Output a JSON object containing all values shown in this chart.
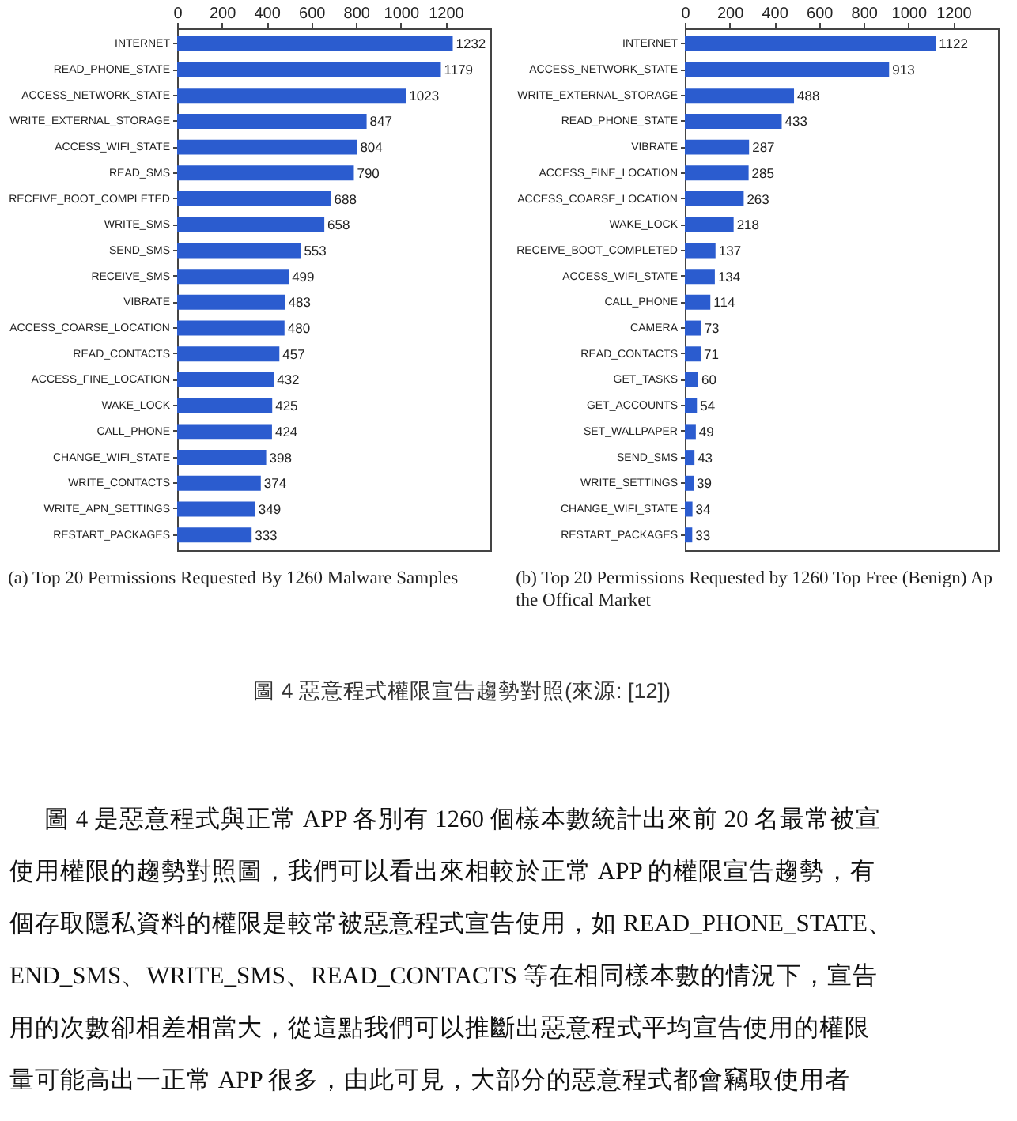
{
  "chart_data": [
    {
      "type": "bar",
      "orientation": "horizontal",
      "title": "(a) Top 20 Permissions Requested By 1260 Malware Samples",
      "categories": [
        "INTERNET",
        "READ_PHONE_STATE",
        "ACCESS_NETWORK_STATE",
        "WRITE_EXTERNAL_STORAGE",
        "ACCESS_WIFI_STATE",
        "READ_SMS",
        "RECEIVE_BOOT_COMPLETED",
        "WRITE_SMS",
        "SEND_SMS",
        "RECEIVE_SMS",
        "VIBRATE",
        "ACCESS_COARSE_LOCATION",
        "READ_CONTACTS",
        "ACCESS_FINE_LOCATION",
        "WAKE_LOCK",
        "CALL_PHONE",
        "CHANGE_WIFI_STATE",
        "WRITE_CONTACTS",
        "WRITE_APN_SETTINGS",
        "RESTART_PACKAGES"
      ],
      "values": [
        1232,
        1179,
        1023,
        847,
        804,
        790,
        688,
        658,
        553,
        499,
        483,
        480,
        457,
        432,
        425,
        424,
        398,
        374,
        349,
        333
      ],
      "color": "#2b5ccf",
      "xlim": [
        0,
        1400
      ],
      "xticks": [
        0,
        200,
        400,
        600,
        800,
        1000,
        1200
      ],
      "data_labels": true
    },
    {
      "type": "bar",
      "orientation": "horizontal",
      "title": "(b) Top 20 Permissions Requested by 1260 Top Free (Benign) Ap the Offical Market",
      "categories": [
        "INTERNET",
        "ACCESS_NETWORK_STATE",
        "WRITE_EXTERNAL_STORAGE",
        "READ_PHONE_STATE",
        "VIBRATE",
        "ACCESS_FINE_LOCATION",
        "ACCESS_COARSE_LOCATION",
        "WAKE_LOCK",
        "RECEIVE_BOOT_COMPLETED",
        "ACCESS_WIFI_STATE",
        "CALL_PHONE",
        "CAMERA",
        "READ_CONTACTS",
        "GET_TASKS",
        "GET_ACCOUNTS",
        "SET_WALLPAPER",
        "SEND_SMS",
        "WRITE_SETTINGS",
        "CHANGE_WIFI_STATE",
        "RESTART_PACKAGES"
      ],
      "values": [
        1122,
        913,
        488,
        433,
        287,
        285,
        263,
        218,
        137,
        134,
        114,
        73,
        71,
        60,
        54,
        49,
        43,
        39,
        34,
        33
      ],
      "color": "#2b5ccf",
      "xlim": [
        0,
        1400
      ],
      "xticks": [
        0,
        200,
        400,
        600,
        800,
        1000,
        1200
      ],
      "data_labels": true
    },
    {
      "type": "other",
      "title": "圖 4 惡意程式權限宣告趨勢對照(來源: [12])",
      "annotations": [
        "圖 4 是惡意程式與正常 APP 各別有 1260 個樣本數統計出來前 20 名最常被宣",
        "使用權限的趨勢對照圖，我們可以看出來相較於正常 APP 的權限宣告趨勢，有",
        "個存取隱私資料的權限是較常被惡意程式宣告使用，如 READ_PHONE_STATE、",
        "END_SMS、WRITE_SMS、READ_CONTACTS 等在相同樣本數的情況下，宣告",
        "用的次數卻相差相當大，從這點我們可以推斷出惡意程式平均宣告使用的權限",
        "量可能高出一正常 APP 很多，由此可見，大部分的惡意程式都會竊取使用者"
      ]
    }
  ]
}
